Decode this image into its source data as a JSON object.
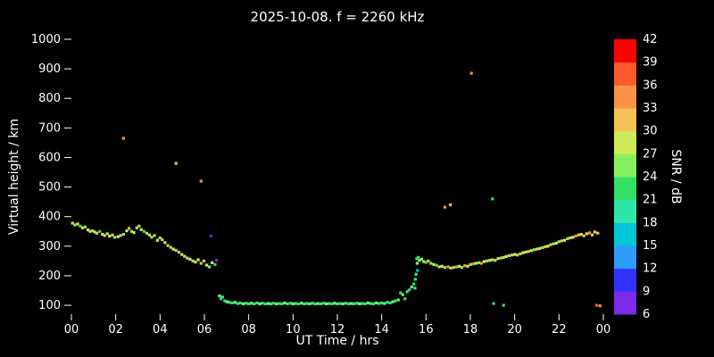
{
  "chart_data": {
    "type": "scatter",
    "title": "2025-10-08. f = 2260 kHz",
    "xlabel": "UT Time / hrs",
    "ylabel": "Virtual height / km",
    "colorbar_label": "SNR / dB",
    "background": "#000000",
    "text_color": "#ffffff",
    "xlim": [
      0,
      24
    ],
    "ylim": [
      70,
      1000
    ],
    "grid": false,
    "x_ticks": [
      {
        "value": 0,
        "label": "00"
      },
      {
        "value": 2,
        "label": "02"
      },
      {
        "value": 4,
        "label": "04"
      },
      {
        "value": 6,
        "label": "06"
      },
      {
        "value": 8,
        "label": "08"
      },
      {
        "value": 10,
        "label": "10"
      },
      {
        "value": 12,
        "label": "12"
      },
      {
        "value": 14,
        "label": "14"
      },
      {
        "value": 16,
        "label": "16"
      },
      {
        "value": 18,
        "label": "18"
      },
      {
        "value": 20,
        "label": "20"
      },
      {
        "value": 22,
        "label": "22"
      },
      {
        "value": 24,
        "label": "00"
      }
    ],
    "y_ticks": [
      100,
      200,
      300,
      400,
      500,
      600,
      700,
      800,
      900,
      1000
    ],
    "colorbar": {
      "min": 6,
      "max": 42,
      "tick_values": [
        6,
        9,
        12,
        15,
        18,
        21,
        24,
        27,
        30,
        33,
        36,
        39,
        42
      ],
      "bands": [
        {
          "min": 6,
          "max": 9,
          "color": "#7d2ae8"
        },
        {
          "min": 9,
          "max": 12,
          "color": "#3333ff"
        },
        {
          "min": 12,
          "max": 15,
          "color": "#2e9bff"
        },
        {
          "min": 15,
          "max": 18,
          "color": "#00c8d7"
        },
        {
          "min": 18,
          "max": 21,
          "color": "#2ee6a8"
        },
        {
          "min": 21,
          "max": 24,
          "color": "#33e066"
        },
        {
          "min": 24,
          "max": 27,
          "color": "#86ef5f"
        },
        {
          "min": 27,
          "max": 30,
          "color": "#cdeb57"
        },
        {
          "min": 30,
          "max": 33,
          "color": "#f6c255"
        },
        {
          "min": 33,
          "max": 36,
          "color": "#fb9246"
        },
        {
          "min": 36,
          "max": 39,
          "color": "#fc5a2e"
        },
        {
          "min": 39,
          "max": 42,
          "color": "#ff0000"
        }
      ]
    },
    "points_format": [
      "ut_hour",
      "virtual_height_km",
      "snr_db"
    ],
    "points": [
      [
        0.05,
        378,
        31
      ],
      [
        0.15,
        372,
        25
      ],
      [
        0.28,
        375,
        28
      ],
      [
        0.4,
        368,
        22
      ],
      [
        0.5,
        362,
        31
      ],
      [
        0.62,
        365,
        25
      ],
      [
        0.75,
        355,
        28
      ],
      [
        0.85,
        350,
        31
      ],
      [
        0.95,
        352,
        25
      ],
      [
        1.05,
        348,
        28
      ],
      [
        1.15,
        344,
        31
      ],
      [
        1.28,
        350,
        22
      ],
      [
        1.4,
        340,
        28
      ],
      [
        1.5,
        336,
        31
      ],
      [
        1.62,
        342,
        25
      ],
      [
        1.72,
        334,
        28
      ],
      [
        1.85,
        338,
        31
      ],
      [
        1.95,
        330,
        25
      ],
      [
        2.1,
        332,
        28
      ],
      [
        2.22,
        336,
        31
      ],
      [
        2.35,
        340,
        25
      ],
      [
        2.5,
        352,
        28
      ],
      [
        2.6,
        360,
        31
      ],
      [
        2.72,
        350,
        25
      ],
      [
        2.82,
        346,
        28
      ],
      [
        2.95,
        362,
        31
      ],
      [
        3.05,
        368,
        25
      ],
      [
        3.15,
        356,
        28
      ],
      [
        3.28,
        350,
        22
      ],
      [
        3.4,
        344,
        31
      ],
      [
        3.52,
        338,
        28
      ],
      [
        3.62,
        330,
        25
      ],
      [
        3.75,
        336,
        31
      ],
      [
        3.88,
        320,
        28
      ],
      [
        4.0,
        328,
        25
      ],
      [
        4.1,
        322,
        31
      ],
      [
        4.22,
        312,
        28
      ],
      [
        4.35,
        302,
        25
      ],
      [
        4.48,
        296,
        31
      ],
      [
        4.6,
        290,
        28
      ],
      [
        4.72,
        286,
        25
      ],
      [
        4.85,
        280,
        31
      ],
      [
        4.98,
        272,
        28
      ],
      [
        5.1,
        266,
        25
      ],
      [
        5.22,
        260,
        31
      ],
      [
        5.35,
        256,
        28
      ],
      [
        5.48,
        250,
        25
      ],
      [
        5.6,
        246,
        31
      ],
      [
        5.72,
        254,
        28
      ],
      [
        5.85,
        242,
        25
      ],
      [
        5.98,
        250,
        31
      ],
      [
        6.1,
        236,
        28
      ],
      [
        6.22,
        230,
        25
      ],
      [
        6.35,
        244,
        28
      ],
      [
        6.48,
        238,
        22
      ],
      [
        6.3,
        334,
        10
      ],
      [
        6.55,
        252,
        7
      ],
      [
        2.35,
        665,
        34
      ],
      [
        4.72,
        580,
        31
      ],
      [
        5.85,
        520,
        34
      ],
      [
        6.68,
        132,
        25
      ],
      [
        6.75,
        122,
        22
      ],
      [
        6.82,
        128,
        19
      ],
      [
        6.92,
        115,
        22
      ],
      [
        7.02,
        112,
        25
      ],
      [
        7.12,
        110,
        19
      ],
      [
        7.25,
        108,
        22
      ],
      [
        7.38,
        110,
        25
      ],
      [
        7.5,
        106,
        19
      ],
      [
        7.62,
        108,
        22
      ],
      [
        7.75,
        105,
        25
      ],
      [
        7.88,
        107,
        19
      ],
      [
        8.0,
        105,
        22
      ],
      [
        8.12,
        107,
        25
      ],
      [
        8.25,
        105,
        19
      ],
      [
        8.38,
        108,
        22
      ],
      [
        8.5,
        105,
        25
      ],
      [
        8.62,
        107,
        19
      ],
      [
        8.75,
        105,
        22
      ],
      [
        8.88,
        106,
        25
      ],
      [
        9.0,
        105,
        19
      ],
      [
        9.12,
        107,
        22
      ],
      [
        9.25,
        105,
        25
      ],
      [
        9.38,
        106,
        19
      ],
      [
        9.5,
        105,
        22
      ],
      [
        9.62,
        108,
        25
      ],
      [
        9.75,
        105,
        19
      ],
      [
        9.88,
        107,
        22
      ],
      [
        10.0,
        105,
        25
      ],
      [
        10.12,
        106,
        19
      ],
      [
        10.25,
        105,
        22
      ],
      [
        10.38,
        107,
        25
      ],
      [
        10.5,
        105,
        19
      ],
      [
        10.62,
        106,
        22
      ],
      [
        10.75,
        105,
        25
      ],
      [
        10.88,
        107,
        19
      ],
      [
        11.0,
        105,
        22
      ],
      [
        11.12,
        106,
        25
      ],
      [
        11.25,
        105,
        19
      ],
      [
        11.38,
        107,
        22
      ],
      [
        11.5,
        105,
        25
      ],
      [
        11.62,
        106,
        19
      ],
      [
        11.75,
        105,
        22
      ],
      [
        11.88,
        107,
        25
      ],
      [
        12.0,
        105,
        19
      ],
      [
        12.12,
        106,
        22
      ],
      [
        12.25,
        105,
        25
      ],
      [
        12.38,
        107,
        19
      ],
      [
        12.5,
        105,
        22
      ],
      [
        12.62,
        106,
        25
      ],
      [
        12.75,
        105,
        19
      ],
      [
        12.88,
        107,
        22
      ],
      [
        13.0,
        105,
        25
      ],
      [
        13.12,
        106,
        19
      ],
      [
        13.25,
        105,
        22
      ],
      [
        13.38,
        108,
        25
      ],
      [
        13.5,
        106,
        19
      ],
      [
        13.62,
        105,
        22
      ],
      [
        13.75,
        108,
        25
      ],
      [
        13.88,
        106,
        19
      ],
      [
        14.0,
        108,
        22
      ],
      [
        14.12,
        106,
        25
      ],
      [
        14.25,
        110,
        19
      ],
      [
        14.38,
        108,
        22
      ],
      [
        14.5,
        112,
        25
      ],
      [
        14.62,
        115,
        22
      ],
      [
        14.75,
        118,
        25
      ],
      [
        14.85,
        142,
        22
      ],
      [
        14.95,
        136,
        25
      ],
      [
        15.05,
        122,
        22
      ],
      [
        15.15,
        146,
        19
      ],
      [
        15.25,
        152,
        22
      ],
      [
        15.35,
        162,
        25
      ],
      [
        15.45,
        172,
        22
      ],
      [
        15.5,
        158,
        19
      ],
      [
        15.52,
        188,
        22
      ],
      [
        15.55,
        205,
        19
      ],
      [
        15.58,
        258,
        22
      ],
      [
        15.6,
        242,
        25
      ],
      [
        15.62,
        218,
        16
      ],
      [
        15.65,
        262,
        22
      ],
      [
        15.7,
        252,
        25
      ],
      [
        15.8,
        256,
        25
      ],
      [
        15.9,
        248,
        28
      ],
      [
        16.0,
        245,
        22
      ],
      [
        16.1,
        250,
        31
      ],
      [
        16.22,
        242,
        25
      ],
      [
        16.35,
        238,
        28
      ],
      [
        16.48,
        235,
        22
      ],
      [
        16.6,
        230,
        31
      ],
      [
        16.72,
        232,
        28
      ],
      [
        16.85,
        228,
        25
      ],
      [
        17.0,
        230,
        34
      ],
      [
        17.12,
        226,
        28
      ],
      [
        17.25,
        228,
        25
      ],
      [
        17.38,
        230,
        34
      ],
      [
        17.5,
        232,
        28
      ],
      [
        17.62,
        228,
        25
      ],
      [
        17.75,
        234,
        34
      ],
      [
        17.88,
        232,
        28
      ],
      [
        18.0,
        238,
        25
      ],
      [
        18.12,
        240,
        34
      ],
      [
        18.25,
        242,
        28
      ],
      [
        18.38,
        244,
        25
      ],
      [
        18.5,
        242,
        34
      ],
      [
        18.62,
        248,
        28
      ],
      [
        18.75,
        250,
        25
      ],
      [
        18.88,
        252,
        28
      ],
      [
        19.0,
        254,
        31
      ],
      [
        19.12,
        252,
        25
      ],
      [
        19.25,
        258,
        28
      ],
      [
        19.38,
        260,
        25
      ],
      [
        19.5,
        262,
        31
      ],
      [
        19.62,
        265,
        28
      ],
      [
        19.75,
        268,
        25
      ],
      [
        19.88,
        270,
        31
      ],
      [
        20.0,
        272,
        28
      ],
      [
        20.12,
        270,
        25
      ],
      [
        20.25,
        274,
        31
      ],
      [
        20.38,
        278,
        28
      ],
      [
        20.5,
        280,
        25
      ],
      [
        20.62,
        282,
        31
      ],
      [
        20.75,
        285,
        28
      ],
      [
        20.88,
        288,
        25
      ],
      [
        21.0,
        290,
        31
      ],
      [
        21.12,
        292,
        28
      ],
      [
        21.25,
        295,
        25
      ],
      [
        21.38,
        298,
        31
      ],
      [
        21.5,
        300,
        28
      ],
      [
        21.62,
        305,
        25
      ],
      [
        21.75,
        308,
        31
      ],
      [
        21.88,
        310,
        28
      ],
      [
        22.0,
        315,
        25
      ],
      [
        22.12,
        318,
        31
      ],
      [
        22.25,
        320,
        28
      ],
      [
        22.38,
        325,
        25
      ],
      [
        22.5,
        328,
        31
      ],
      [
        22.62,
        330,
        28
      ],
      [
        22.75,
        334,
        34
      ],
      [
        22.88,
        338,
        31
      ],
      [
        23.0,
        340,
        28
      ],
      [
        23.12,
        335,
        31
      ],
      [
        23.25,
        342,
        28
      ],
      [
        23.38,
        345,
        34
      ],
      [
        23.5,
        338,
        31
      ],
      [
        23.62,
        348,
        28
      ],
      [
        23.75,
        344,
        31
      ],
      [
        16.85,
        432,
        34
      ],
      [
        17.1,
        440,
        31
      ],
      [
        18.05,
        885,
        34
      ],
      [
        19.0,
        460,
        22
      ],
      [
        19.05,
        106,
        22
      ],
      [
        19.5,
        100,
        22
      ],
      [
        23.7,
        100,
        37
      ],
      [
        23.85,
        98,
        34
      ]
    ]
  }
}
